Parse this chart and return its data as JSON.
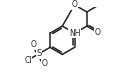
{
  "bg_color": "#ffffff",
  "line_color": "#222222",
  "lw": 1.1,
  "fs": 5.5,
  "xlim": [
    -0.55,
    0.72
  ],
  "ylim": [
    -0.42,
    0.42
  ]
}
